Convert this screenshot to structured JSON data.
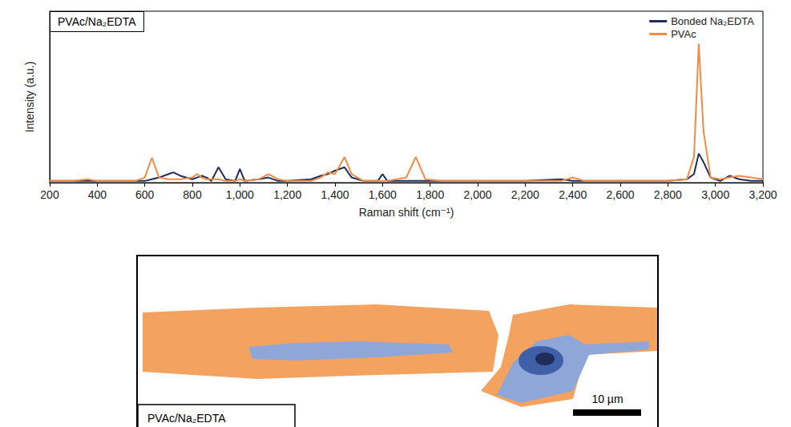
{
  "chart_data": {
    "type": "line",
    "title": "PVAc/Na₂EDTA",
    "x_label": "Raman shift (cm⁻¹)",
    "y_label": "Intensity (a.u.)",
    "x": [
      200,
      300,
      360,
      400,
      500,
      560,
      600,
      630,
      660,
      700,
      720,
      750,
      800,
      820,
      840,
      860,
      880,
      910,
      940,
      980,
      1000,
      1020,
      1080,
      1120,
      1160,
      1200,
      1300,
      1340,
      1370,
      1400,
      1440,
      1470,
      1520,
      1580,
      1600,
      1620,
      1700,
      1740,
      1780,
      1850,
      2000,
      2200,
      2350,
      2400,
      2450,
      2600,
      2800,
      2880,
      2910,
      2930,
      2950,
      2980,
      3020,
      3060,
      3100,
      3150,
      3200
    ],
    "series": [
      {
        "name": "Bonded Na₂EDTA",
        "color": "#1f2d5c",
        "values": [
          0.01,
          0.01,
          0.01,
          0.01,
          0.01,
          0.01,
          0.01,
          0.02,
          0.03,
          0.05,
          0.06,
          0.04,
          0.02,
          0.03,
          0.04,
          0.03,
          0.01,
          0.09,
          0.02,
          0.01,
          0.08,
          0.01,
          0.02,
          0.03,
          0.01,
          0.01,
          0.02,
          0.04,
          0.05,
          0.07,
          0.09,
          0.03,
          0.01,
          0.01,
          0.05,
          0.01,
          0.01,
          0.01,
          0.01,
          0.01,
          0.01,
          0.01,
          0.02,
          0.01,
          0.01,
          0.01,
          0.01,
          0.02,
          0.05,
          0.17,
          0.12,
          0.03,
          0.01,
          0.04,
          0.02,
          0.01,
          0.01
        ]
      },
      {
        "name": "PVAc",
        "color": "#f08c46",
        "values": [
          0.01,
          0.01,
          0.02,
          0.01,
          0.01,
          0.01,
          0.03,
          0.145,
          0.03,
          0.02,
          0.02,
          0.02,
          0.03,
          0.05,
          0.03,
          0.02,
          0.02,
          0.02,
          0.01,
          0.01,
          0.02,
          0.01,
          0.02,
          0.05,
          0.02,
          0.01,
          0.01,
          0.03,
          0.06,
          0.05,
          0.15,
          0.05,
          0.01,
          0.01,
          0.01,
          0.01,
          0.03,
          0.15,
          0.02,
          0.01,
          0.01,
          0.01,
          0.01,
          0.03,
          0.01,
          0.01,
          0.01,
          0.02,
          0.15,
          0.81,
          0.3,
          0.03,
          0.02,
          0.03,
          0.04,
          0.03,
          0.02
        ]
      }
    ],
    "xlim": [
      200,
      3200
    ],
    "xticks": [
      200,
      400,
      600,
      800,
      1000,
      1200,
      1400,
      1600,
      1800,
      2000,
      2200,
      2400,
      2600,
      2800,
      3000,
      3200
    ],
    "ylim": [
      0,
      1
    ],
    "tick_labels": "x",
    "grid": false,
    "legend": "top-right"
  },
  "map": {
    "label": "PVAc/Na₂EDTA",
    "scale_bar": "10 µm"
  }
}
